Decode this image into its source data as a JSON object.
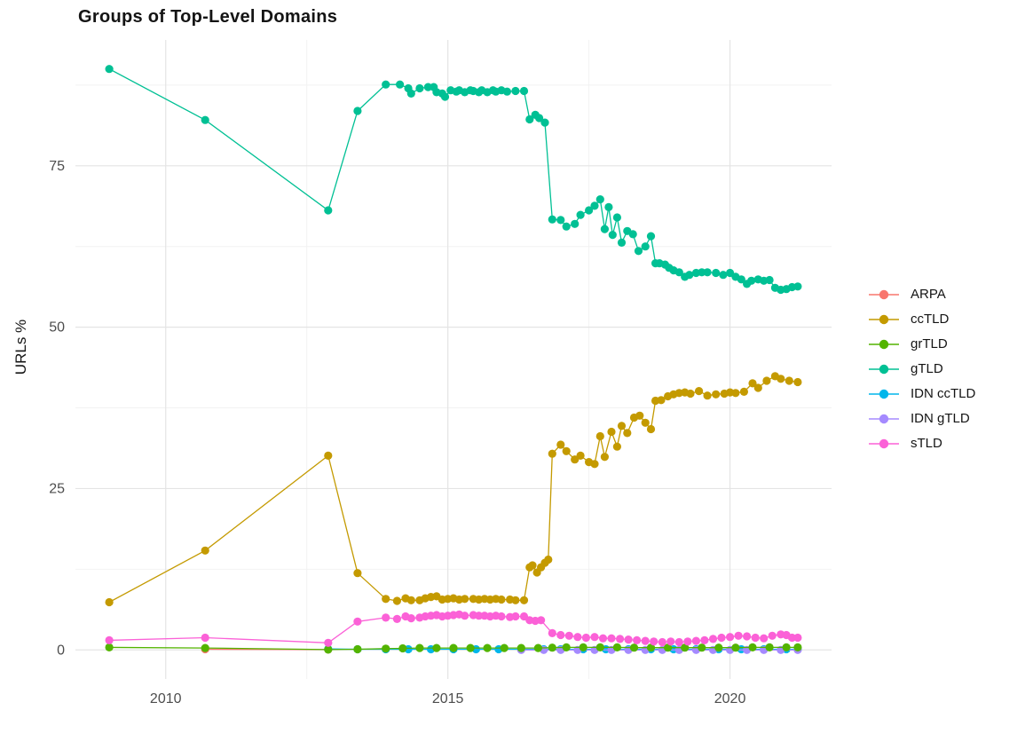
{
  "chart_data": {
    "type": "line",
    "title": "Groups of Top-Level Domains",
    "xlabel": "",
    "ylabel": "URLs %",
    "grid": true,
    "legend_position": "right",
    "xlim": [
      2008.4,
      2021.8
    ],
    "ylim": [
      -4.5,
      94.5
    ],
    "x_ticks": [
      2010,
      2015,
      2020
    ],
    "x_tick_labels": [
      "2010",
      "2015",
      "2020"
    ],
    "x_minor_ticks": [
      2012.5,
      2017.5
    ],
    "y_ticks": [
      0,
      25,
      50,
      75
    ],
    "y_tick_labels": [
      "0",
      "25",
      "50",
      "75"
    ],
    "y_minor_ticks": [
      12.5,
      37.5,
      62.5,
      87.5
    ],
    "draw_order": [
      "ARPA",
      "IDN ccTLD",
      "IDN gTLD",
      "grTLD",
      "ccTLD",
      "gTLD",
      "sTLD"
    ],
    "series": [
      {
        "name": "ARPA",
        "color": "#F8766D",
        "points": [
          [
            2010.7,
            0.1
          ],
          [
            2012.88,
            0.05
          ]
        ]
      },
      {
        "name": "ccTLD",
        "color": "#C49A00",
        "points": [
          [
            2009.0,
            7.4
          ],
          [
            2010.7,
            15.4
          ],
          [
            2012.88,
            30.1
          ],
          [
            2013.4,
            11.9
          ],
          [
            2013.9,
            7.9
          ],
          [
            2014.1,
            7.6
          ],
          [
            2014.25,
            8.0
          ],
          [
            2014.35,
            7.7
          ],
          [
            2014.5,
            7.7
          ],
          [
            2014.6,
            8.0
          ],
          [
            2014.7,
            8.2
          ],
          [
            2014.8,
            8.3
          ],
          [
            2014.9,
            7.8
          ],
          [
            2015.0,
            7.9
          ],
          [
            2015.1,
            8.0
          ],
          [
            2015.2,
            7.8
          ],
          [
            2015.3,
            7.9
          ],
          [
            2015.45,
            7.9
          ],
          [
            2015.55,
            7.8
          ],
          [
            2015.65,
            7.9
          ],
          [
            2015.75,
            7.8
          ],
          [
            2015.85,
            7.9
          ],
          [
            2015.95,
            7.8
          ],
          [
            2016.1,
            7.8
          ],
          [
            2016.2,
            7.7
          ],
          [
            2016.35,
            7.7
          ],
          [
            2016.45,
            12.8
          ],
          [
            2016.5,
            13.1
          ],
          [
            2016.58,
            12.0
          ],
          [
            2016.65,
            12.8
          ],
          [
            2016.72,
            13.5
          ],
          [
            2016.78,
            14.0
          ],
          [
            2016.85,
            30.4
          ],
          [
            2017.0,
            31.8
          ],
          [
            2017.1,
            30.8
          ],
          [
            2017.25,
            29.5
          ],
          [
            2017.35,
            30.1
          ],
          [
            2017.5,
            29.1
          ],
          [
            2017.6,
            28.8
          ],
          [
            2017.7,
            33.1
          ],
          [
            2017.78,
            29.9
          ],
          [
            2017.9,
            33.8
          ],
          [
            2018.0,
            31.5
          ],
          [
            2018.08,
            34.7
          ],
          [
            2018.18,
            33.6
          ],
          [
            2018.3,
            36.0
          ],
          [
            2018.4,
            36.3
          ],
          [
            2018.5,
            35.2
          ],
          [
            2018.6,
            34.2
          ],
          [
            2018.68,
            38.6
          ],
          [
            2018.78,
            38.7
          ],
          [
            2018.9,
            39.3
          ],
          [
            2019.0,
            39.6
          ],
          [
            2019.1,
            39.8
          ],
          [
            2019.2,
            39.9
          ],
          [
            2019.3,
            39.7
          ],
          [
            2019.45,
            40.1
          ],
          [
            2019.6,
            39.4
          ],
          [
            2019.75,
            39.6
          ],
          [
            2019.9,
            39.7
          ],
          [
            2020.0,
            39.9
          ],
          [
            2020.1,
            39.8
          ],
          [
            2020.25,
            40.0
          ],
          [
            2020.4,
            41.3
          ],
          [
            2020.5,
            40.6
          ],
          [
            2020.65,
            41.7
          ],
          [
            2020.8,
            42.4
          ],
          [
            2020.9,
            42.0
          ],
          [
            2021.05,
            41.7
          ],
          [
            2021.2,
            41.5
          ]
        ]
      },
      {
        "name": "grTLD",
        "color": "#53B400",
        "points": [
          [
            2009.0,
            0.4
          ],
          [
            2010.7,
            0.3
          ],
          [
            2012.88,
            0.05
          ],
          [
            2013.4,
            0.1
          ],
          [
            2013.9,
            0.2
          ],
          [
            2014.2,
            0.25
          ],
          [
            2014.5,
            0.3
          ],
          [
            2014.8,
            0.3
          ],
          [
            2015.1,
            0.3
          ],
          [
            2015.4,
            0.3
          ],
          [
            2015.7,
            0.3
          ],
          [
            2016.0,
            0.3
          ],
          [
            2016.3,
            0.3
          ],
          [
            2016.6,
            0.3
          ],
          [
            2016.85,
            0.35
          ],
          [
            2017.1,
            0.4
          ],
          [
            2017.4,
            0.4
          ],
          [
            2017.7,
            0.4
          ],
          [
            2018.0,
            0.4
          ],
          [
            2018.3,
            0.35
          ],
          [
            2018.6,
            0.35
          ],
          [
            2018.9,
            0.35
          ],
          [
            2019.2,
            0.35
          ],
          [
            2019.5,
            0.35
          ],
          [
            2019.8,
            0.35
          ],
          [
            2020.1,
            0.35
          ],
          [
            2020.4,
            0.4
          ],
          [
            2020.7,
            0.4
          ],
          [
            2021.0,
            0.4
          ],
          [
            2021.2,
            0.4
          ]
        ]
      },
      {
        "name": "gTLD",
        "color": "#00C094",
        "points": [
          [
            2009.0,
            90.0
          ],
          [
            2010.7,
            82.1
          ],
          [
            2012.88,
            68.1
          ],
          [
            2013.4,
            83.5
          ],
          [
            2013.9,
            87.6
          ],
          [
            2014.15,
            87.6
          ],
          [
            2014.3,
            87.0
          ],
          [
            2014.35,
            86.2
          ],
          [
            2014.5,
            87.0
          ],
          [
            2014.65,
            87.2
          ],
          [
            2014.75,
            87.2
          ],
          [
            2014.8,
            86.4
          ],
          [
            2014.9,
            86.2
          ],
          [
            2014.95,
            85.7
          ],
          [
            2015.05,
            86.7
          ],
          [
            2015.15,
            86.5
          ],
          [
            2015.2,
            86.7
          ],
          [
            2015.3,
            86.4
          ],
          [
            2015.4,
            86.7
          ],
          [
            2015.45,
            86.6
          ],
          [
            2015.55,
            86.4
          ],
          [
            2015.6,
            86.7
          ],
          [
            2015.7,
            86.4
          ],
          [
            2015.8,
            86.7
          ],
          [
            2015.85,
            86.5
          ],
          [
            2015.95,
            86.7
          ],
          [
            2016.05,
            86.5
          ],
          [
            2016.2,
            86.6
          ],
          [
            2016.35,
            86.6
          ],
          [
            2016.45,
            82.2
          ],
          [
            2016.55,
            82.9
          ],
          [
            2016.62,
            82.4
          ],
          [
            2016.72,
            81.7
          ],
          [
            2016.85,
            66.7
          ],
          [
            2017.0,
            66.6
          ],
          [
            2017.1,
            65.6
          ],
          [
            2017.25,
            66.0
          ],
          [
            2017.35,
            67.4
          ],
          [
            2017.5,
            68.1
          ],
          [
            2017.6,
            68.8
          ],
          [
            2017.7,
            69.8
          ],
          [
            2017.78,
            65.2
          ],
          [
            2017.85,
            68.6
          ],
          [
            2017.92,
            64.3
          ],
          [
            2018.0,
            67.0
          ],
          [
            2018.08,
            63.1
          ],
          [
            2018.18,
            64.9
          ],
          [
            2018.28,
            64.4
          ],
          [
            2018.38,
            61.8
          ],
          [
            2018.5,
            62.5
          ],
          [
            2018.6,
            64.1
          ],
          [
            2018.68,
            59.9
          ],
          [
            2018.75,
            59.9
          ],
          [
            2018.85,
            59.7
          ],
          [
            2018.92,
            59.2
          ],
          [
            2019.0,
            58.8
          ],
          [
            2019.1,
            58.5
          ],
          [
            2019.2,
            57.8
          ],
          [
            2019.28,
            58.1
          ],
          [
            2019.4,
            58.4
          ],
          [
            2019.5,
            58.5
          ],
          [
            2019.6,
            58.5
          ],
          [
            2019.75,
            58.4
          ],
          [
            2019.88,
            58.1
          ],
          [
            2020.0,
            58.4
          ],
          [
            2020.1,
            57.8
          ],
          [
            2020.2,
            57.4
          ],
          [
            2020.3,
            56.7
          ],
          [
            2020.38,
            57.2
          ],
          [
            2020.5,
            57.4
          ],
          [
            2020.6,
            57.2
          ],
          [
            2020.7,
            57.3
          ],
          [
            2020.8,
            56.1
          ],
          [
            2020.9,
            55.8
          ],
          [
            2021.0,
            55.9
          ],
          [
            2021.1,
            56.2
          ],
          [
            2021.2,
            56.3
          ]
        ]
      },
      {
        "name": "IDN ccTLD",
        "color": "#00B6EB",
        "points": [
          [
            2012.88,
            0.15
          ],
          [
            2013.4,
            0.1
          ],
          [
            2013.9,
            0.1
          ],
          [
            2014.3,
            0.1
          ],
          [
            2014.7,
            0.1
          ],
          [
            2015.1,
            0.1
          ],
          [
            2015.5,
            0.1
          ],
          [
            2015.9,
            0.1
          ],
          [
            2016.3,
            0.1
          ],
          [
            2016.7,
            0.1
          ],
          [
            2017.0,
            0.1
          ],
          [
            2017.4,
            0.1
          ],
          [
            2017.8,
            0.1
          ],
          [
            2018.2,
            0.1
          ],
          [
            2018.6,
            0.1
          ],
          [
            2019.0,
            0.1
          ],
          [
            2019.4,
            0.1
          ],
          [
            2019.8,
            0.1
          ],
          [
            2020.2,
            0.1
          ],
          [
            2020.6,
            0.1
          ],
          [
            2021.0,
            0.1
          ],
          [
            2021.2,
            0.1
          ]
        ]
      },
      {
        "name": "IDN gTLD",
        "color": "#A58AFF",
        "points": [
          [
            2016.3,
            0.0
          ],
          [
            2016.7,
            0.0
          ],
          [
            2017.0,
            0.0
          ],
          [
            2017.3,
            0.0
          ],
          [
            2017.6,
            0.0
          ],
          [
            2017.9,
            0.0
          ],
          [
            2018.2,
            0.0
          ],
          [
            2018.5,
            0.0
          ],
          [
            2018.8,
            0.0
          ],
          [
            2019.1,
            0.0
          ],
          [
            2019.4,
            0.0
          ],
          [
            2019.7,
            0.0
          ],
          [
            2020.0,
            0.0
          ],
          [
            2020.3,
            0.0
          ],
          [
            2020.6,
            0.0
          ],
          [
            2020.9,
            0.0
          ],
          [
            2021.2,
            0.0
          ]
        ]
      },
      {
        "name": "sTLD",
        "color": "#FB61D7",
        "points": [
          [
            2009.0,
            1.5
          ],
          [
            2010.7,
            1.9
          ],
          [
            2012.88,
            1.1
          ],
          [
            2013.4,
            4.4
          ],
          [
            2013.9,
            5.0
          ],
          [
            2014.1,
            4.8
          ],
          [
            2014.25,
            5.2
          ],
          [
            2014.35,
            4.9
          ],
          [
            2014.5,
            5.0
          ],
          [
            2014.6,
            5.2
          ],
          [
            2014.7,
            5.3
          ],
          [
            2014.8,
            5.4
          ],
          [
            2014.9,
            5.2
          ],
          [
            2015.0,
            5.3
          ],
          [
            2015.1,
            5.4
          ],
          [
            2015.2,
            5.5
          ],
          [
            2015.3,
            5.3
          ],
          [
            2015.45,
            5.4
          ],
          [
            2015.55,
            5.3
          ],
          [
            2015.65,
            5.3
          ],
          [
            2015.75,
            5.2
          ],
          [
            2015.85,
            5.3
          ],
          [
            2015.95,
            5.2
          ],
          [
            2016.1,
            5.1
          ],
          [
            2016.2,
            5.2
          ],
          [
            2016.35,
            5.2
          ],
          [
            2016.45,
            4.6
          ],
          [
            2016.55,
            4.5
          ],
          [
            2016.65,
            4.6
          ],
          [
            2016.85,
            2.6
          ],
          [
            2017.0,
            2.3
          ],
          [
            2017.15,
            2.2
          ],
          [
            2017.3,
            2.0
          ],
          [
            2017.45,
            1.9
          ],
          [
            2017.6,
            2.0
          ],
          [
            2017.75,
            1.8
          ],
          [
            2017.9,
            1.8
          ],
          [
            2018.05,
            1.7
          ],
          [
            2018.2,
            1.6
          ],
          [
            2018.35,
            1.5
          ],
          [
            2018.5,
            1.4
          ],
          [
            2018.65,
            1.3
          ],
          [
            2018.8,
            1.2
          ],
          [
            2018.95,
            1.3
          ],
          [
            2019.1,
            1.2
          ],
          [
            2019.25,
            1.3
          ],
          [
            2019.4,
            1.4
          ],
          [
            2019.55,
            1.5
          ],
          [
            2019.7,
            1.7
          ],
          [
            2019.85,
            1.9
          ],
          [
            2020.0,
            2.0
          ],
          [
            2020.15,
            2.2
          ],
          [
            2020.3,
            2.1
          ],
          [
            2020.45,
            1.9
          ],
          [
            2020.6,
            1.8
          ],
          [
            2020.75,
            2.2
          ],
          [
            2020.9,
            2.4
          ],
          [
            2021.0,
            2.3
          ],
          [
            2021.1,
            1.9
          ],
          [
            2021.2,
            1.9
          ]
        ]
      }
    ]
  }
}
